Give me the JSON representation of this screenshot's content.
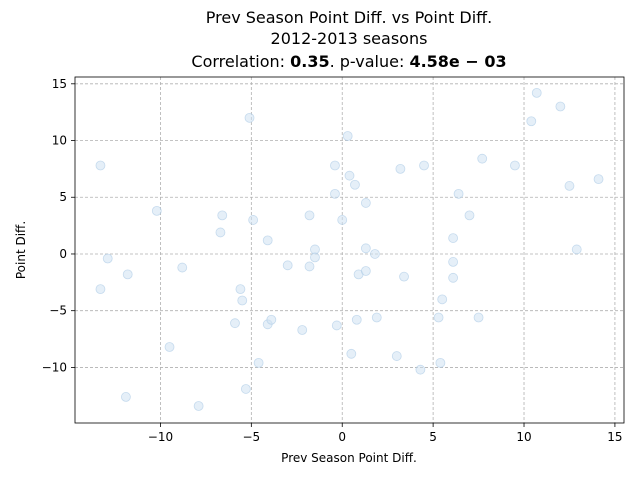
{
  "chart_data": {
    "type": "scatter",
    "title_lines": [
      "Prev Season Point Diff. vs Point Diff.",
      "2012-2013 seasons"
    ],
    "correlation_prefix": "Correlation: ",
    "correlation_value": "0.35",
    "pvalue_prefix": ". p-value: ",
    "pvalue_value": "4.58e − 03",
    "xlabel": "Prev Season Point Diff.",
    "ylabel": "Point Diff.",
    "xlim": [
      -14.7,
      15.5
    ],
    "ylim": [
      -14.9,
      15.6
    ],
    "xticks": [
      -10,
      -5,
      0,
      5,
      10,
      15
    ],
    "xtick_labels": [
      "−10",
      "−5",
      "0",
      "5",
      "10",
      "15"
    ],
    "yticks": [
      -10,
      -5,
      0,
      5,
      10,
      15
    ],
    "ytick_labels": [
      "−10",
      "−5",
      "0",
      "5",
      "10",
      "15"
    ],
    "grid": true,
    "point_color": "#cfe2f3",
    "points": [
      {
        "x": -13.3,
        "y": 7.8
      },
      {
        "x": -13.3,
        "y": -3.1
      },
      {
        "x": -12.9,
        "y": -0.4
      },
      {
        "x": -11.9,
        "y": -12.6
      },
      {
        "x": -11.8,
        "y": -1.8
      },
      {
        "x": -10.2,
        "y": 3.8
      },
      {
        "x": -9.5,
        "y": -8.2
      },
      {
        "x": -8.8,
        "y": -1.2
      },
      {
        "x": -7.9,
        "y": -13.4
      },
      {
        "x": -6.7,
        "y": 1.9
      },
      {
        "x": -6.6,
        "y": 3.4
      },
      {
        "x": -5.9,
        "y": -6.1
      },
      {
        "x": -5.6,
        "y": -3.1
      },
      {
        "x": -5.5,
        "y": -4.1
      },
      {
        "x": -5.3,
        "y": -11.9
      },
      {
        "x": -5.1,
        "y": 12.0
      },
      {
        "x": -4.9,
        "y": 3.0
      },
      {
        "x": -4.6,
        "y": -9.6
      },
      {
        "x": -4.1,
        "y": 1.2
      },
      {
        "x": -4.1,
        "y": -6.2
      },
      {
        "x": -3.9,
        "y": -5.8
      },
      {
        "x": -3.0,
        "y": -1.0
      },
      {
        "x": -2.2,
        "y": -6.7
      },
      {
        "x": -1.8,
        "y": 3.4
      },
      {
        "x": -1.8,
        "y": -1.1
      },
      {
        "x": -1.5,
        "y": 0.4
      },
      {
        "x": -1.5,
        "y": -0.3
      },
      {
        "x": -0.4,
        "y": 7.8
      },
      {
        "x": -0.4,
        "y": 5.3
      },
      {
        "x": -0.3,
        "y": -6.3
      },
      {
        "x": 0.0,
        "y": 3.0
      },
      {
        "x": 0.3,
        "y": 10.4
      },
      {
        "x": 0.4,
        "y": 6.9
      },
      {
        "x": 0.5,
        "y": -8.8
      },
      {
        "x": 0.7,
        "y": 6.1
      },
      {
        "x": 0.8,
        "y": -5.8
      },
      {
        "x": 0.9,
        "y": -1.8
      },
      {
        "x": 1.3,
        "y": 4.5
      },
      {
        "x": 1.3,
        "y": 0.5
      },
      {
        "x": 1.3,
        "y": -1.5
      },
      {
        "x": 1.8,
        "y": 0.0
      },
      {
        "x": 1.9,
        "y": -5.6
      },
      {
        "x": 3.0,
        "y": -9.0
      },
      {
        "x": 3.2,
        "y": 7.5
      },
      {
        "x": 3.4,
        "y": -2.0
      },
      {
        "x": 4.3,
        "y": -10.2
      },
      {
        "x": 4.5,
        "y": 7.8
      },
      {
        "x": 5.3,
        "y": -5.6
      },
      {
        "x": 5.4,
        "y": -9.6
      },
      {
        "x": 5.5,
        "y": -4.0
      },
      {
        "x": 6.1,
        "y": 1.4
      },
      {
        "x": 6.1,
        "y": -0.7
      },
      {
        "x": 6.1,
        "y": -2.1
      },
      {
        "x": 6.4,
        "y": 5.3
      },
      {
        "x": 7.0,
        "y": 3.4
      },
      {
        "x": 7.5,
        "y": -5.6
      },
      {
        "x": 7.7,
        "y": 8.4
      },
      {
        "x": 9.5,
        "y": 7.8
      },
      {
        "x": 10.4,
        "y": 11.7
      },
      {
        "x": 10.7,
        "y": 14.2
      },
      {
        "x": 12.0,
        "y": 13.0
      },
      {
        "x": 12.5,
        "y": 6.0
      },
      {
        "x": 12.9,
        "y": 0.4
      },
      {
        "x": 14.1,
        "y": 6.6
      }
    ]
  }
}
